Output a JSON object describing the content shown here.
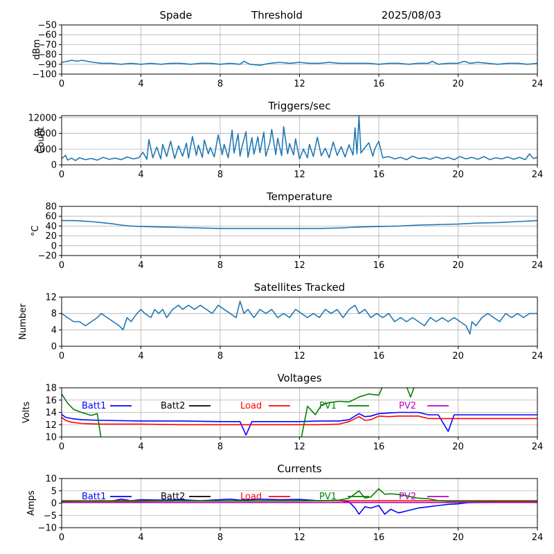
{
  "header": {
    "station": "Spade",
    "label": "Threshold",
    "date": "2025/08/03"
  },
  "chart_data": [
    {
      "id": "threshold",
      "type": "line",
      "title": "",
      "xlabel": "",
      "ylabel": "dBm",
      "xlim": [
        0,
        24
      ],
      "ylim": [
        -100,
        -50
      ],
      "xticks": [
        0,
        4,
        8,
        12,
        16,
        20,
        24
      ],
      "yticks": [
        -100,
        -90,
        -80,
        -70,
        -60,
        -50
      ],
      "grid": true,
      "series": [
        {
          "color": "#1f77b4",
          "x": [
            0,
            0.3,
            0.5,
            0.8,
            1.0,
            1.3,
            1.6,
            2.0,
            2.5,
            3,
            3.5,
            4,
            4.5,
            5,
            5.5,
            6,
            6.5,
            7,
            7.5,
            8,
            8.5,
            9,
            9.2,
            9.5,
            10,
            10.5,
            11,
            11.5,
            12,
            12.5,
            13,
            13.5,
            14,
            14.5,
            15,
            15.5,
            16,
            16.5,
            17,
            17.5,
            18,
            18.5,
            18.7,
            19,
            19.5,
            20,
            20.3,
            20.6,
            21,
            21.5,
            22,
            22.5,
            23,
            23.5,
            24
          ],
          "y": [
            -88,
            -87,
            -86,
            -87,
            -86,
            -87,
            -88,
            -89,
            -89,
            -90,
            -89,
            -90,
            -89,
            -90,
            -89,
            -89,
            -90,
            -89,
            -89,
            -90,
            -89,
            -90,
            -87,
            -90,
            -91,
            -89,
            -88,
            -89,
            -88,
            -89,
            -89,
            -88,
            -89,
            -89,
            -89,
            -89,
            -90,
            -89,
            -89,
            -90,
            -89,
            -89,
            -87,
            -90,
            -89,
            -89,
            -87,
            -89,
            -88,
            -89,
            -90,
            -89,
            -89,
            -90,
            -89
          ]
        }
      ]
    },
    {
      "id": "triggers",
      "type": "line",
      "title": "Triggers/sec",
      "xlabel": "",
      "ylabel": "Count",
      "xlim": [
        0,
        24
      ],
      "ylim": [
        0,
        12500
      ],
      "xticks": [
        0,
        4,
        8,
        12,
        16,
        20,
        24
      ],
      "yticks": [
        0,
        4000,
        8000,
        12000
      ],
      "grid": true,
      "series": [
        {
          "color": "#1f77b4",
          "x": [
            0,
            0.2,
            0.3,
            0.5,
            0.7,
            0.9,
            1.2,
            1.5,
            1.8,
            2.1,
            2.4,
            2.7,
            3.0,
            3.3,
            3.6,
            3.9,
            4.1,
            4.3,
            4.4,
            4.6,
            4.8,
            5.0,
            5.1,
            5.3,
            5.5,
            5.7,
            5.9,
            6.1,
            6.3,
            6.4,
            6.6,
            6.8,
            6.9,
            7.1,
            7.2,
            7.4,
            7.5,
            7.7,
            7.9,
            8.1,
            8.2,
            8.4,
            8.6,
            8.7,
            8.9,
            9.0,
            9.1,
            9.3,
            9.4,
            9.6,
            9.7,
            9.9,
            10.0,
            10.2,
            10.3,
            10.5,
            10.6,
            10.8,
            10.9,
            11.1,
            11.2,
            11.4,
            11.5,
            11.7,
            11.8,
            12.0,
            12.2,
            12.4,
            12.5,
            12.7,
            12.9,
            13.1,
            13.3,
            13.5,
            13.7,
            13.9,
            14.1,
            14.3,
            14.5,
            14.7,
            14.8,
            14.9,
            15.0,
            15.1,
            15.3,
            15.5,
            15.7,
            15.8,
            16.0,
            16.2,
            16.5,
            16.8,
            17.1,
            17.4,
            17.7,
            18.0,
            18.3,
            18.6,
            18.9,
            19.2,
            19.5,
            19.8,
            20.1,
            20.4,
            20.7,
            21.0,
            21.3,
            21.6,
            21.9,
            22.2,
            22.5,
            22.8,
            23.1,
            23.4,
            23.6,
            23.8,
            24.0
          ],
          "y": [
            1600,
            2400,
            1200,
            1700,
            1100,
            1800,
            1300,
            1600,
            1200,
            1900,
            1400,
            1700,
            1300,
            2000,
            1500,
            1800,
            3200,
            1400,
            6400,
            1800,
            4500,
            1500,
            5200,
            2100,
            6000,
            1600,
            4800,
            2200,
            5500,
            1700,
            7200,
            2400,
            5000,
            1900,
            6300,
            2800,
            4400,
            2000,
            7600,
            2600,
            5200,
            1800,
            8800,
            3000,
            7800,
            2200,
            4600,
            8400,
            1900,
            6900,
            2700,
            7100,
            3100,
            8300,
            2200,
            5600,
            9000,
            2600,
            6800,
            2300,
            9700,
            2800,
            5400,
            2500,
            6600,
            1500,
            4000,
            1800,
            5200,
            2100,
            7000,
            2300,
            4200,
            1800,
            5800,
            2400,
            4600,
            2000,
            5100,
            2500,
            9400,
            2800,
            12400,
            3000,
            4400,
            5600,
            2200,
            4100,
            6000,
            1800,
            2100,
            1500,
            1900,
            1300,
            2200,
            1600,
            1800,
            1400,
            2000,
            1500,
            1900,
            1300,
            2100,
            1500,
            1900,
            1400,
            2100,
            1300,
            1800,
            1500,
            2000,
            1400,
            1900,
            1300,
            2800,
            1600,
            1900
          ]
        }
      ]
    },
    {
      "id": "temperature",
      "type": "line",
      "title": "Temperature",
      "xlabel": "",
      "ylabel": "°C",
      "xlim": [
        0,
        24
      ],
      "ylim": [
        -20,
        80
      ],
      "xticks": [
        0,
        4,
        8,
        12,
        16,
        20,
        24
      ],
      "yticks": [
        -20,
        0,
        20,
        40,
        60,
        80
      ],
      "grid": true,
      "series": [
        {
          "color": "#1f77b4",
          "x": [
            0,
            0.7,
            1.5,
            2,
            2.5,
            3,
            3.5,
            4,
            5,
            6,
            7,
            8,
            9,
            10,
            11,
            12,
            13,
            14,
            15,
            16,
            17,
            18,
            19,
            20,
            21,
            22,
            23,
            24
          ],
          "y": [
            51,
            51,
            49,
            47,
            45,
            42,
            40,
            39,
            38,
            37,
            36,
            35,
            35,
            35,
            35,
            35,
            35,
            36,
            38,
            39,
            40,
            42,
            43,
            44,
            46,
            47,
            49,
            51
          ]
        }
      ]
    },
    {
      "id": "satellites",
      "type": "line",
      "title": "Satellites Tracked",
      "xlabel": "",
      "ylabel": "Number",
      "xlim": [
        0,
        24
      ],
      "ylim": [
        0,
        12
      ],
      "xticks": [
        0,
        4,
        8,
        12,
        16,
        20,
        24
      ],
      "yticks": [
        0,
        4,
        8,
        12
      ],
      "grid": true,
      "series": [
        {
          "color": "#1f77b4",
          "x": [
            0,
            0.3,
            0.6,
            0.9,
            1.2,
            1.5,
            1.8,
            2.0,
            2.3,
            2.6,
            2.9,
            3.1,
            3.3,
            3.5,
            3.8,
            4.0,
            4.2,
            4.5,
            4.7,
            4.9,
            5.1,
            5.3,
            5.6,
            5.9,
            6.1,
            6.4,
            6.7,
            7.0,
            7.3,
            7.6,
            7.9,
            8.2,
            8.5,
            8.8,
            9.0,
            9.2,
            9.4,
            9.7,
            10.0,
            10.3,
            10.6,
            10.9,
            11.2,
            11.5,
            11.8,
            12.1,
            12.4,
            12.7,
            13.0,
            13.3,
            13.6,
            13.9,
            14.2,
            14.5,
            14.8,
            15.0,
            15.3,
            15.6,
            15.9,
            16.2,
            16.5,
            16.8,
            17.1,
            17.4,
            17.7,
            18.0,
            18.3,
            18.6,
            18.9,
            19.2,
            19.5,
            19.8,
            20.1,
            20.4,
            20.6,
            20.7,
            20.9,
            21.2,
            21.5,
            21.8,
            22.1,
            22.4,
            22.7,
            23.0,
            23.3,
            23.6,
            24.0
          ],
          "y": [
            8,
            7,
            6,
            6,
            5,
            6,
            7,
            8,
            7,
            6,
            5,
            4,
            7,
            6,
            8,
            9,
            8,
            7,
            9,
            8,
            9,
            7,
            9,
            10,
            9,
            10,
            9,
            10,
            9,
            8,
            10,
            9,
            8,
            7,
            11,
            8,
            9,
            7,
            9,
            8,
            9,
            7,
            8,
            7,
            9,
            8,
            7,
            8,
            7,
            9,
            8,
            9,
            7,
            9,
            10,
            8,
            9,
            7,
            8,
            7,
            8,
            6,
            7,
            6,
            7,
            6,
            5,
            7,
            6,
            7,
            6,
            7,
            6,
            5,
            3,
            6,
            5,
            7,
            8,
            7,
            6,
            8,
            7,
            8,
            7,
            8,
            8
          ]
        }
      ]
    },
    {
      "id": "voltages",
      "type": "line",
      "title": "Voltages",
      "xlabel": "",
      "ylabel": "Volts",
      "xlim": [
        0,
        24
      ],
      "ylim": [
        10,
        18
      ],
      "xticks": [
        0,
        4,
        8,
        12,
        16,
        20,
        24
      ],
      "yticks": [
        10,
        12,
        14,
        16,
        18
      ],
      "grid": true,
      "legend": "top, horizontal row",
      "series": [
        {
          "name": "Batt1",
          "color": "#0000ff",
          "x": [
            0,
            0.2,
            0.5,
            1,
            2,
            4,
            6,
            8,
            9,
            9.3,
            9.6,
            10,
            12,
            13,
            14,
            14.5,
            15,
            15.3,
            15.6,
            16,
            17,
            18,
            18.5,
            19,
            19.5,
            19.8,
            20,
            21,
            22,
            24
          ],
          "y": [
            13.7,
            13.2,
            13.0,
            12.8,
            12.7,
            12.6,
            12.6,
            12.5,
            12.5,
            10.3,
            12.5,
            12.5,
            12.5,
            12.6,
            12.6,
            12.8,
            13.8,
            13.3,
            13.4,
            13.8,
            14.0,
            14.0,
            13.6,
            13.6,
            10.9,
            13.6,
            13.6,
            13.6,
            13.6,
            13.6
          ]
        },
        {
          "name": "Batt2",
          "color": "#000000",
          "x": [],
          "y": []
        },
        {
          "name": "Load",
          "color": "#ff0000",
          "x": [
            0,
            0.2,
            0.5,
            1,
            2,
            4,
            6,
            8,
            10,
            12,
            13,
            14,
            14.5,
            15,
            15.3,
            15.6,
            16,
            16.5,
            17,
            18,
            18.5,
            19,
            20,
            22,
            24
          ],
          "y": [
            13.2,
            12.7,
            12.4,
            12.2,
            12.1,
            12.1,
            12.0,
            12.0,
            12.0,
            12.0,
            12.0,
            12.1,
            12.5,
            13.3,
            12.7,
            12.8,
            13.4,
            13.3,
            13.4,
            13.4,
            13.0,
            13.0,
            13.0,
            13.0,
            13.0
          ]
        },
        {
          "name": "PV1",
          "color": "#008000",
          "x": [
            0,
            0.3,
            0.6,
            1,
            1.5,
            1.8,
            2.0,
            2.2,
            11.9,
            12.1,
            12.4,
            12.8,
            13.1,
            13.5,
            14,
            14.5,
            15,
            15.5,
            16,
            16.2,
            17.4,
            17.6,
            17.8,
            18.0
          ],
          "y": [
            17.0,
            15.5,
            14.5,
            14.0,
            13.5,
            13.8,
            9.5,
            null,
            9.5,
            10.0,
            15.0,
            13.6,
            15.2,
            15.6,
            15.8,
            15.7,
            16.5,
            17.0,
            16.8,
            18.2,
            18.2,
            16.5,
            18.2,
            18.2
          ]
        },
        {
          "name": "PV2",
          "color": "#c000c0",
          "x": [],
          "y": []
        }
      ]
    },
    {
      "id": "currents",
      "type": "line",
      "title": "Currents",
      "xlabel": "",
      "ylabel": "Amps",
      "xlim": [
        0,
        24
      ],
      "ylim": [
        -10,
        10
      ],
      "xticks": [
        0,
        4,
        8,
        12,
        16,
        20,
        24
      ],
      "yticks": [
        -10,
        -5,
        0,
        5,
        10
      ],
      "grid": true,
      "legend": "top, horizontal row",
      "series": [
        {
          "name": "Batt1",
          "color": "#0000ff",
          "x": [
            0,
            1,
            2,
            2.5,
            3,
            3.5,
            4,
            5,
            6,
            7,
            8,
            8.5,
            9,
            10,
            11,
            12,
            13,
            14,
            14.5,
            14.8,
            15,
            15.3,
            15.6,
            16,
            16.3,
            16.6,
            17,
            17.5,
            18,
            18.5,
            19,
            19.5,
            20,
            20.5,
            21,
            22,
            24
          ],
          "y": [
            0.5,
            0.8,
            1.0,
            0.8,
            1.6,
            1.0,
            1.4,
            1.2,
            1.4,
            1.0,
            1.4,
            1.6,
            1.2,
            1.6,
            1.4,
            1.5,
            1.0,
            1.1,
            0.5,
            -2,
            -4.5,
            -1.5,
            -2,
            -1,
            -4.5,
            -2.5,
            -4,
            -3,
            -2,
            -1.5,
            -1,
            -0.5,
            -0.3,
            0.2,
            0.3,
            0.4,
            0.4
          ]
        },
        {
          "name": "Batt2",
          "color": "#000000",
          "x": [],
          "y": []
        },
        {
          "name": "Load",
          "color": "#ff0000",
          "x": [
            0,
            4,
            8,
            12,
            16,
            20,
            24
          ],
          "y": [
            1.0,
            1.0,
            1.0,
            1.0,
            1.0,
            1.0,
            1.0
          ]
        },
        {
          "name": "PV1",
          "color": "#008000",
          "x": [
            0,
            2,
            4,
            6,
            8,
            10,
            12,
            13,
            14,
            14.5,
            15,
            15.3,
            15.6,
            16,
            16.3,
            16.6,
            17,
            17.5,
            18,
            18.5,
            19,
            19.5,
            20,
            22,
            24
          ],
          "y": [
            0.8,
            0.8,
            0.8,
            0.9,
            0.9,
            0.9,
            0.9,
            1.0,
            1.2,
            2.0,
            5.0,
            2.0,
            2.5,
            5.8,
            3.6,
            3.8,
            3.5,
            2.8,
            2.0,
            1.8,
            1.0,
            0.8,
            0.8,
            0.7,
            0.7
          ]
        },
        {
          "name": "PV2",
          "color": "#c000c0",
          "x": [
            0,
            4,
            8,
            12,
            16,
            20,
            24
          ],
          "y": [
            0.3,
            0.3,
            0.3,
            0.3,
            0.3,
            0.3,
            0.3
          ]
        }
      ]
    }
  ]
}
